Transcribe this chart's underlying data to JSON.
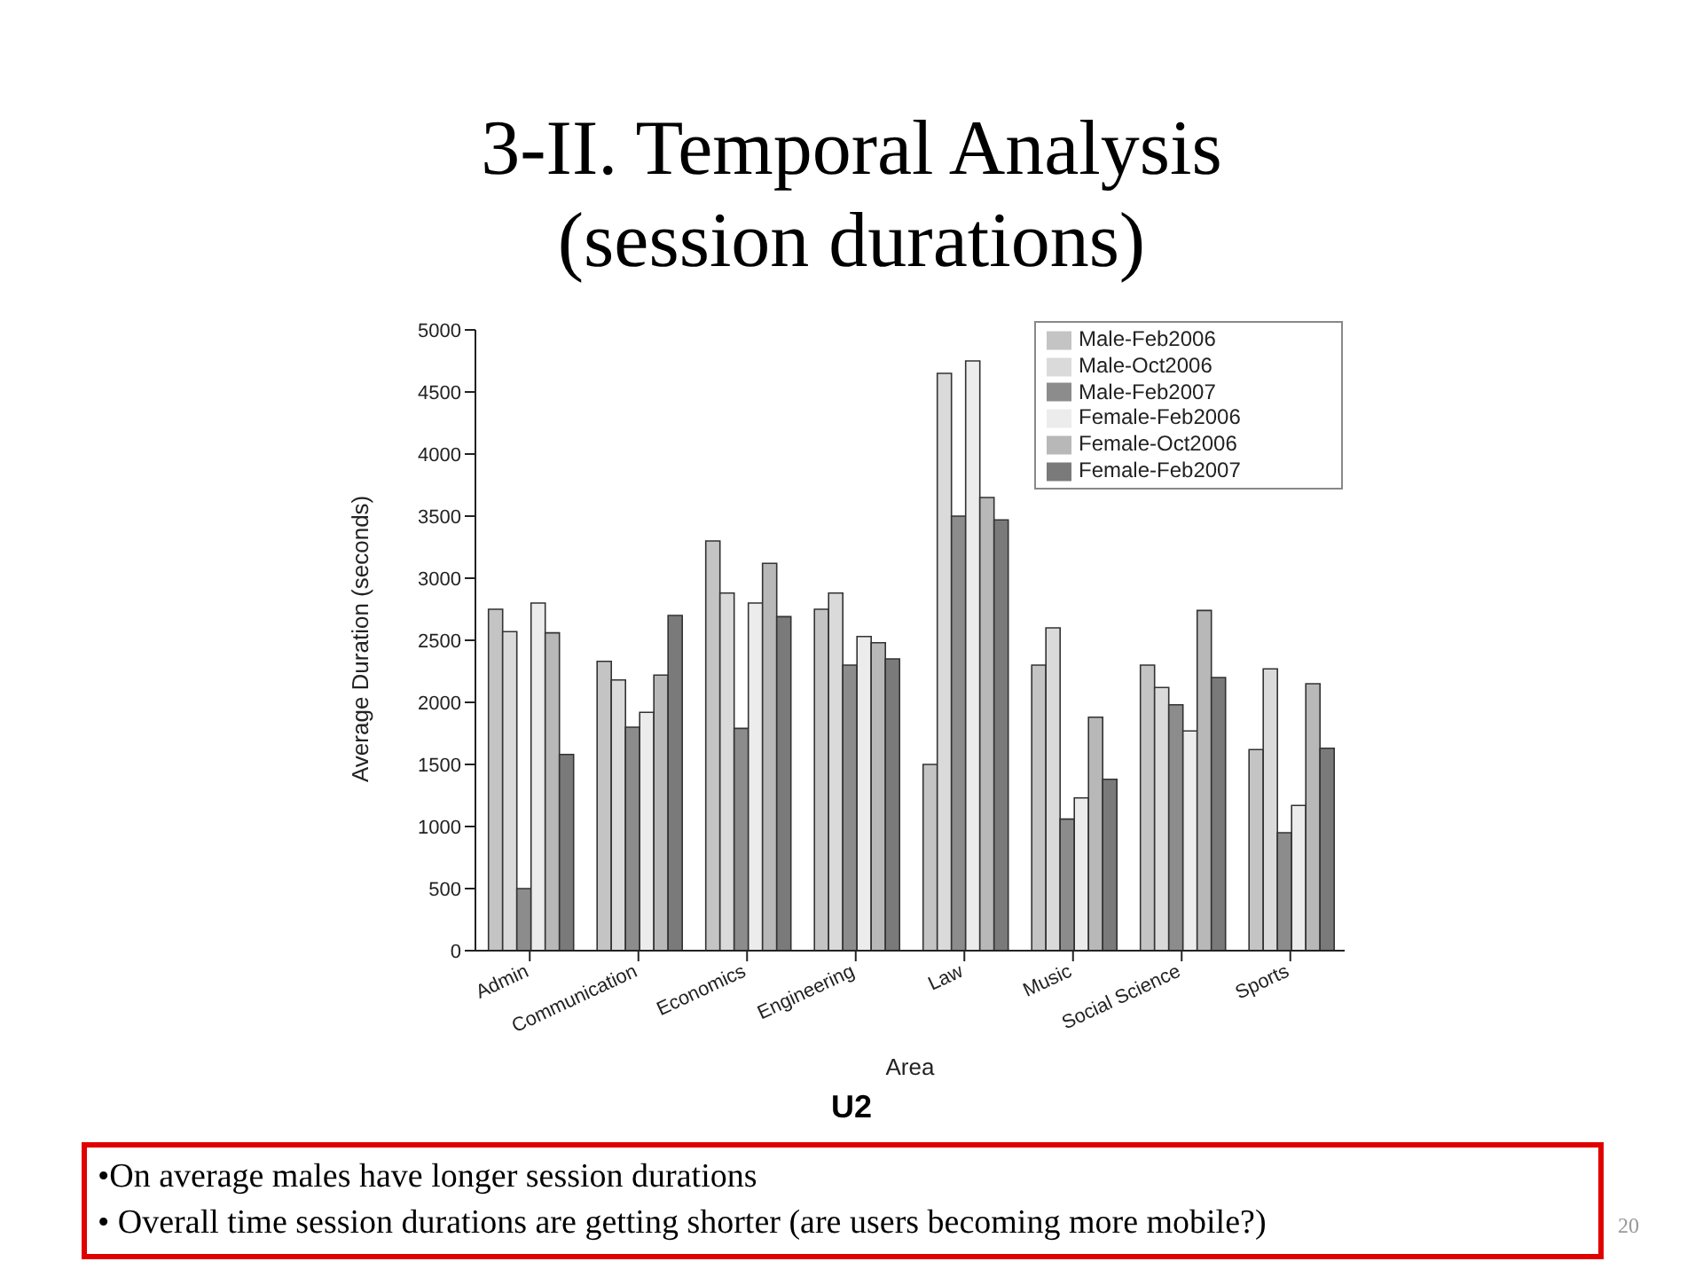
{
  "chart_data": {
    "type": "bar",
    "title": "3-II. Temporal Analysis",
    "subtitle": "(session durations)",
    "xlabel": "Area",
    "ylabel": "Average Duration (seconds)",
    "categories": [
      "Admin",
      "Communication",
      "Economics",
      "Engineering",
      "Law",
      "Music",
      "Social Science",
      "Sports"
    ],
    "series": [
      {
        "name": "Male-Feb2006",
        "color": "#c4c4c4",
        "values": [
          2750,
          2330,
          3300,
          2750,
          1500,
          2300,
          2300,
          1620
        ]
      },
      {
        "name": "Male-Oct2006",
        "color": "#dadada",
        "values": [
          2570,
          2180,
          2880,
          2880,
          4650,
          2600,
          2120,
          2270
        ]
      },
      {
        "name": "Male-Feb2007",
        "color": "#8c8c8c",
        "values": [
          500,
          1800,
          1790,
          2300,
          3500,
          1060,
          1980,
          950
        ]
      },
      {
        "name": "Female-Feb2006",
        "color": "#ececec",
        "values": [
          2800,
          1920,
          2800,
          2530,
          4750,
          1230,
          1770,
          1170
        ]
      },
      {
        "name": "Female-Oct2006",
        "color": "#b8b8b8",
        "values": [
          2560,
          2220,
          3120,
          2480,
          3650,
          1880,
          2740,
          2150
        ]
      },
      {
        "name": "Female-Feb2007",
        "color": "#7a7a7a",
        "values": [
          1580,
          2700,
          2690,
          2350,
          3470,
          1380,
          2200,
          1630
        ]
      }
    ],
    "ylim": [
      0,
      5000
    ],
    "yticks": [
      0,
      500,
      1000,
      1500,
      2000,
      2500,
      3000,
      3500,
      4000,
      4500,
      5000
    ],
    "grid": false,
    "legend": "top right",
    "annotations": [
      "U2",
      "•On average males have longer session durations",
      "• Overall time session durations are getting shorter (are users becoming more mobile?)",
      "20"
    ]
  }
}
